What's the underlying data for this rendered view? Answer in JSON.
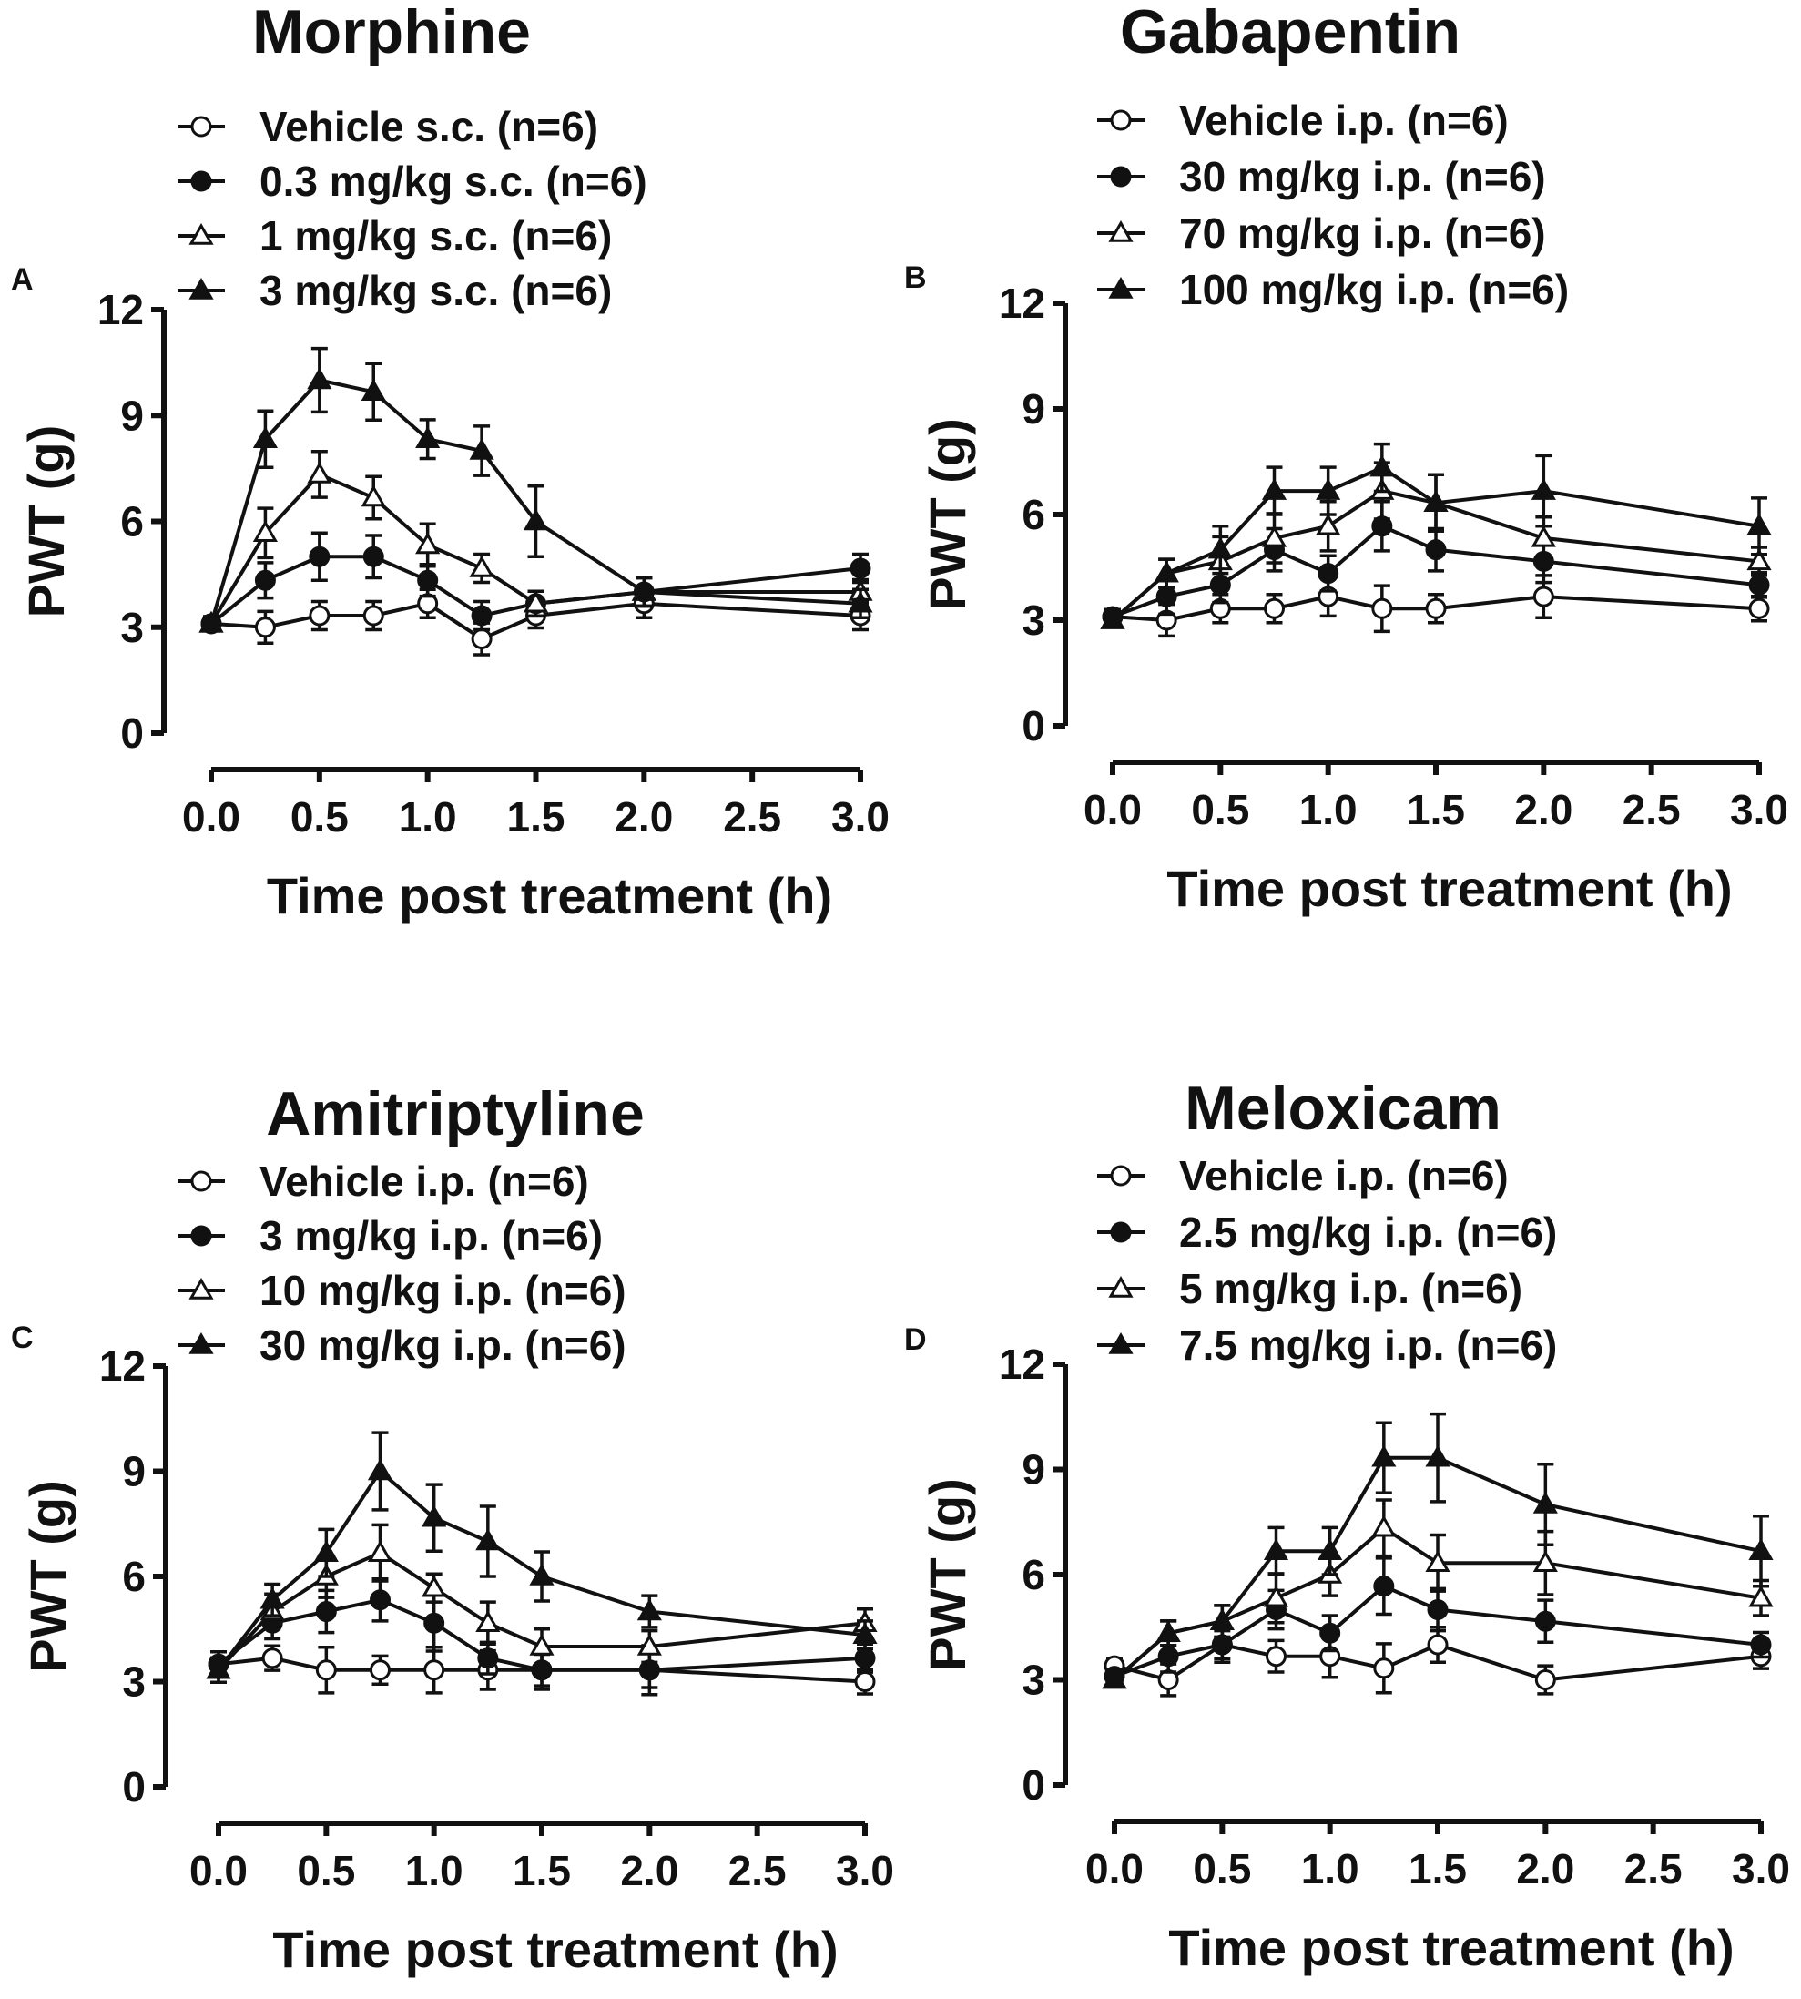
{
  "chart_data": [
    {
      "type": "line",
      "panel_letter": "A",
      "title": "Morphine",
      "xlabel": "Time post treatment (h)",
      "ylabel": "PWT (g)",
      "xlim": [
        0,
        3
      ],
      "ylim": [
        0,
        12
      ],
      "x_ticks": [
        "0.0",
        "0.5",
        "1.0",
        "1.5",
        "2.0",
        "2.5",
        "3.0"
      ],
      "y_ticks": [
        "0",
        "3",
        "6",
        "9",
        "12"
      ],
      "x": [
        0,
        0.25,
        0.5,
        0.75,
        1.0,
        1.25,
        1.5,
        2.0,
        3.0
      ],
      "legend_position": "top-left",
      "series": [
        {
          "name": "Vehicle s.c. (n=6)",
          "marker": "circle-open",
          "values": [
            3.1,
            3.0,
            3.33,
            3.33,
            3.67,
            2.67,
            3.33,
            3.67,
            3.33
          ],
          "errors": [
            0.2,
            0.45,
            0.4,
            0.4,
            0.4,
            0.45,
            0.35,
            0.4,
            0.4
          ]
        },
        {
          "name": "0.3 mg/kg s.c. (n=6)",
          "marker": "circle-filled",
          "values": [
            3.1,
            4.33,
            5.0,
            5.0,
            4.33,
            3.33,
            3.67,
            4.0,
            4.67
          ],
          "errors": [
            0.2,
            0.5,
            0.67,
            0.6,
            0.45,
            0.4,
            0.35,
            0.4,
            0.4
          ]
        },
        {
          "name": "1 mg/kg s.c. (n=6)",
          "marker": "triangle-open",
          "values": [
            3.1,
            5.67,
            7.33,
            6.67,
            5.33,
            4.67,
            3.67,
            4.0,
            4.0
          ],
          "errors": [
            0.2,
            0.7,
            0.65,
            0.6,
            0.6,
            0.4,
            0.35,
            0.4,
            0.35
          ]
        },
        {
          "name": "3 mg/kg s.c. (n=6)",
          "marker": "triangle-filled",
          "values": [
            3.1,
            8.33,
            10.0,
            9.67,
            8.33,
            8.0,
            6.0,
            4.0,
            3.67
          ],
          "errors": [
            0.2,
            0.8,
            0.9,
            0.8,
            0.55,
            0.7,
            1.0,
            0.4,
            0.4
          ]
        }
      ]
    },
    {
      "type": "line",
      "panel_letter": "B",
      "title": "Gabapentin",
      "xlabel": "Time post treatment (h)",
      "ylabel": "PWT (g)",
      "xlim": [
        0,
        3
      ],
      "ylim": [
        0,
        12
      ],
      "x_ticks": [
        "0.0",
        "0.5",
        "1.0",
        "1.5",
        "2.0",
        "2.5",
        "3.0"
      ],
      "y_ticks": [
        "0",
        "3",
        "6",
        "9",
        "12"
      ],
      "x": [
        0,
        0.25,
        0.5,
        0.75,
        1.0,
        1.25,
        1.5,
        2.0,
        3.0
      ],
      "legend_position": "top-left",
      "series": [
        {
          "name": "Vehicle i.p. (n=6)",
          "marker": "circle-open",
          "values": [
            3.1,
            3.0,
            3.33,
            3.33,
            3.67,
            3.33,
            3.33,
            3.67,
            3.33
          ],
          "errors": [
            0.2,
            0.45,
            0.4,
            0.4,
            0.55,
            0.65,
            0.4,
            0.6,
            0.35
          ]
        },
        {
          "name": "30 mg/kg i.p. (n=6)",
          "marker": "circle-filled",
          "values": [
            3.1,
            3.67,
            4.0,
            5.0,
            4.33,
            5.67,
            5.0,
            4.67,
            4.0
          ],
          "errors": [
            0.2,
            0.5,
            0.5,
            0.6,
            0.5,
            0.7,
            0.6,
            0.6,
            0.35
          ]
        },
        {
          "name": "70 mg/kg i.p. (n=6)",
          "marker": "triangle-open",
          "values": [
            3.0,
            4.33,
            4.67,
            5.33,
            5.67,
            6.67,
            6.33,
            5.33,
            4.67
          ],
          "errors": [
            0.2,
            0.4,
            0.7,
            0.7,
            0.7,
            0.8,
            0.8,
            0.6,
            0.4
          ]
        },
        {
          "name": "100 mg/kg i.p. (n=6)",
          "marker": "triangle-filled",
          "values": [
            3.0,
            4.33,
            5.0,
            6.67,
            6.67,
            7.33,
            6.33,
            6.67,
            5.67
          ],
          "errors": [
            0.2,
            0.4,
            0.67,
            0.67,
            0.67,
            0.67,
            0.8,
            1.0,
            0.8
          ]
        }
      ]
    },
    {
      "type": "line",
      "panel_letter": "C",
      "title": "Amitriptyline",
      "xlabel": "Time post treatment (h)",
      "ylabel": "PWT (g)",
      "xlim": [
        0,
        3
      ],
      "ylim": [
        0,
        12
      ],
      "x_ticks": [
        "0.0",
        "0.5",
        "1.0",
        "1.5",
        "2.0",
        "2.5",
        "3.0"
      ],
      "y_ticks": [
        "0",
        "3",
        "6",
        "9",
        "12"
      ],
      "x": [
        0,
        0.25,
        0.5,
        0.75,
        1.0,
        1.25,
        1.5,
        2.0,
        3.0
      ],
      "legend_position": "top-left",
      "series": [
        {
          "name": "Vehicle i.p. (n=6)",
          "marker": "circle-open",
          "values": [
            3.5,
            3.67,
            3.33,
            3.33,
            3.33,
            3.33,
            3.33,
            3.33,
            3.0
          ],
          "errors": [
            0.35,
            0.35,
            0.65,
            0.4,
            0.65,
            0.55,
            0.55,
            0.7,
            0.35
          ]
        },
        {
          "name": "3 mg/kg i.p. (n=6)",
          "marker": "circle-filled",
          "values": [
            3.5,
            4.67,
            5.0,
            5.33,
            4.67,
            3.67,
            3.33,
            3.33,
            3.67
          ],
          "errors": [
            0.35,
            0.45,
            0.6,
            0.6,
            0.8,
            0.45,
            0.45,
            0.5,
            0.4
          ]
        },
        {
          "name": "10 mg/kg i.p. (n=6)",
          "marker": "triangle-open",
          "values": [
            3.33,
            5.0,
            6.0,
            6.67,
            5.67,
            4.67,
            4.0,
            4.0,
            4.67
          ],
          "errors": [
            0.35,
            0.5,
            0.6,
            0.8,
            0.4,
            0.6,
            0.5,
            0.45,
            0.4
          ]
        },
        {
          "name": "30 mg/kg i.p. (n=6)",
          "marker": "triangle-filled",
          "values": [
            3.33,
            5.33,
            6.67,
            9.0,
            7.67,
            7.0,
            6.0,
            5.0,
            4.33
          ],
          "errors": [
            0.35,
            0.45,
            0.67,
            1.1,
            0.95,
            1.0,
            0.7,
            0.45,
            0.4
          ]
        }
      ]
    },
    {
      "type": "line",
      "panel_letter": "D",
      "title": "Meloxicam",
      "xlabel": "Time post treatment (h)",
      "ylabel": "PWT (g)",
      "xlim": [
        0,
        3
      ],
      "ylim": [
        0,
        12
      ],
      "x_ticks": [
        "0.0",
        "0.5",
        "1.0",
        "1.5",
        "2.0",
        "2.5",
        "3.0"
      ],
      "y_ticks": [
        "0",
        "3",
        "6",
        "9",
        "12"
      ],
      "x": [
        0,
        0.25,
        0.5,
        0.75,
        1.0,
        1.25,
        1.5,
        2.0,
        3.0
      ],
      "legend_position": "top-left",
      "series": [
        {
          "name": "Vehicle i.p. (n=6)",
          "marker": "circle-open",
          "values": [
            3.4,
            3.0,
            4.0,
            3.67,
            3.67,
            3.33,
            4.0,
            3.0,
            3.67
          ],
          "errors": [
            0.2,
            0.45,
            0.4,
            0.45,
            0.6,
            0.7,
            0.5,
            0.4,
            0.35
          ]
        },
        {
          "name": "2.5 mg/kg i.p. (n=6)",
          "marker": "circle-filled",
          "values": [
            3.1,
            3.67,
            4.0,
            5.0,
            4.33,
            5.67,
            5.0,
            4.67,
            4.0
          ],
          "errors": [
            0.2,
            0.45,
            0.5,
            0.55,
            0.5,
            0.8,
            0.6,
            0.6,
            0.35
          ]
        },
        {
          "name": "5 mg/kg i.p. (n=6)",
          "marker": "triangle-open",
          "values": [
            3.0,
            4.33,
            4.67,
            5.33,
            6.0,
            7.33,
            6.33,
            6.33,
            5.33
          ],
          "errors": [
            0.2,
            0.35,
            0.45,
            0.7,
            0.6,
            0.8,
            0.8,
            0.9,
            0.5
          ]
        },
        {
          "name": "7.5 mg/kg i.p. (n=6)",
          "marker": "triangle-filled",
          "values": [
            3.0,
            4.33,
            4.67,
            6.67,
            6.67,
            9.33,
            9.33,
            8.0,
            6.67
          ],
          "errors": [
            0.2,
            0.35,
            0.45,
            0.67,
            0.67,
            1.0,
            1.25,
            1.15,
            1.0
          ]
        }
      ]
    }
  ]
}
